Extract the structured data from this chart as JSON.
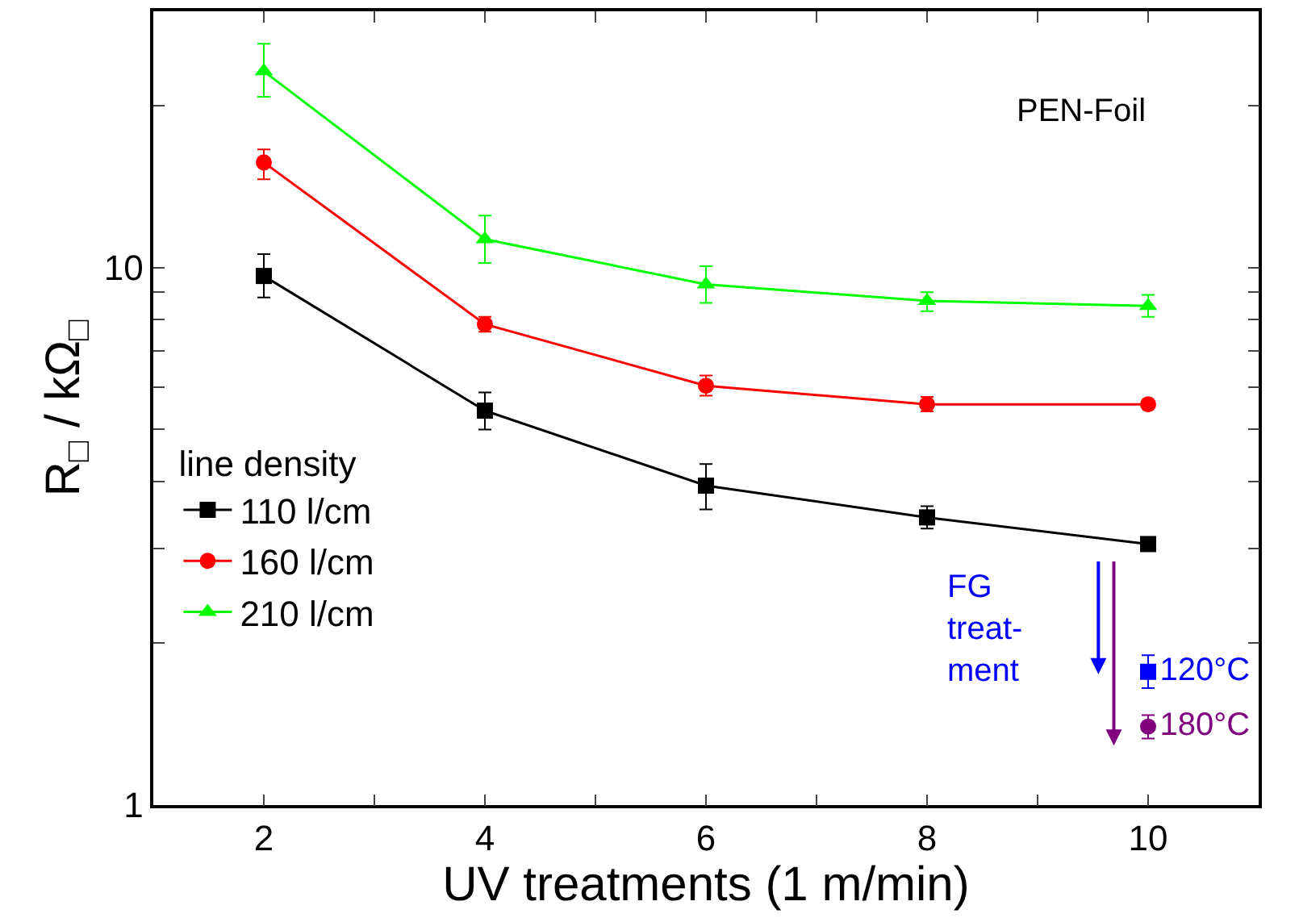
{
  "chart_data": {
    "type": "line",
    "xlabel": "UV treatments (1 m/min)",
    "ylabel": "R$_{□}$ / kΩ$_{□}$",
    "legend_title": "line density",
    "legend": "bottom left",
    "log": "y",
    "line_style": "solid",
    "x": [
      2,
      4,
      6,
      8,
      10
    ],
    "xlim": [
      1,
      11
    ],
    "xticks": [
      {
        "value": 1,
        "label": null
      },
      2,
      {
        "value": 3,
        "label": null
      },
      4,
      {
        "value": 5,
        "label": null
      },
      6,
      {
        "value": 7,
        "label": null
      },
      8,
      {
        "value": 9,
        "label": null
      },
      10,
      {
        "value": 11,
        "label": null
      }
    ],
    "ylim": [
      1,
      30
    ],
    "yticks": [
      1,
      {
        "value": 2,
        "label": null
      },
      {
        "value": 3,
        "label": null
      },
      {
        "value": 4,
        "label": null
      },
      {
        "value": 5,
        "label": null
      },
      {
        "value": 6,
        "label": null
      },
      {
        "value": 7,
        "label": null
      },
      {
        "value": 8,
        "label": null
      },
      {
        "value": 9,
        "label": null
      },
      10,
      {
        "value": 20,
        "label": null
      },
      {
        "value": 30,
        "label": null
      }
    ],
    "series": [
      {
        "name": "110 l/cm",
        "color": "#000000",
        "marker": "square",
        "values": [
          9.65,
          5.42,
          3.93,
          3.43,
          3.06
        ],
        "errors": [
          [
            8.8,
            10.6
          ],
          [
            5.0,
            5.86
          ],
          [
            3.55,
            4.31
          ],
          [
            3.27,
            3.6
          ],
          null
        ]
      },
      {
        "name": "160 l/cm",
        "color": "#ff0000",
        "marker": "circle",
        "values": [
          15.7,
          7.85,
          6.03,
          5.57,
          5.57
        ],
        "errors": [
          [
            14.6,
            16.6
          ],
          [
            7.6,
            8.1
          ],
          [
            5.78,
            6.3
          ],
          [
            5.4,
            5.75
          ],
          null
        ]
      },
      {
        "name": "210 l/cm",
        "color": "#00ff00",
        "marker": "triangle",
        "values": [
          23.2,
          11.3,
          9.31,
          8.67,
          8.49
        ],
        "errors": [
          [
            20.8,
            26.1
          ],
          [
            10.2,
            12.5
          ],
          [
            8.6,
            10.06
          ],
          [
            8.3,
            9.0
          ],
          [
            8.1,
            8.9
          ]
        ]
      },
      {
        "name": "120°C",
        "type": "scatter",
        "color": "#0000ff",
        "marker": "square",
        "x": [
          10
        ],
        "values": [
          1.77
        ],
        "errors": [
          [
            1.65,
            1.9
          ]
        ]
      },
      {
        "name": "180°C",
        "type": "scatter",
        "color": "#800080",
        "marker": "circle",
        "x": [
          10
        ],
        "values": [
          1.4
        ],
        "errors": [
          [
            1.33,
            1.47
          ]
        ]
      }
    ],
    "annotations": [
      "PEN-Foil",
      "FG\ntreat-\nment"
    ]
  }
}
